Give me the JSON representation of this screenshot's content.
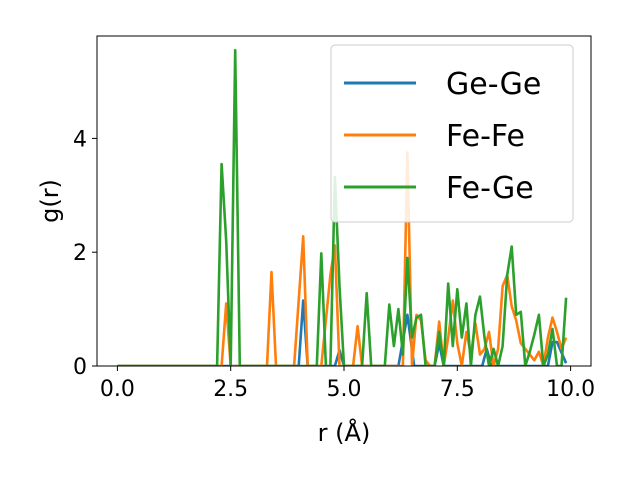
{
  "chart_data": {
    "type": "line",
    "xlabel": "r (Å)",
    "ylabel": "g(r)",
    "xlim": [
      -0.45,
      10.45
    ],
    "ylim": [
      0,
      5.8
    ],
    "xticks": [
      0.0,
      2.5,
      5.0,
      7.5,
      10.0
    ],
    "xtick_labels": [
      "0.0",
      "2.5",
      "5.0",
      "7.5",
      "10.0"
    ],
    "yticks": [
      0,
      2,
      4
    ],
    "ytick_labels": [
      "0",
      "2",
      "4"
    ],
    "grid": false,
    "legend_position": "top-right",
    "series": [
      {
        "name": "Ge-Ge",
        "color": "#1f77b4",
        "x": [
          0.0,
          3.7,
          3.85,
          4.0,
          4.1,
          4.2,
          4.35,
          4.8,
          4.9,
          5.0,
          6.2,
          6.4,
          6.55,
          7.0,
          7.1,
          7.2,
          8.05,
          8.15,
          8.25,
          9.5,
          9.6,
          9.7,
          9.9
        ],
        "values": [
          0,
          0,
          0,
          0,
          1.15,
          0,
          0,
          0,
          0.28,
          0,
          0,
          0.9,
          0,
          0,
          0.4,
          0,
          0,
          0.3,
          0,
          0,
          0.42,
          0.42,
          0.05
        ]
      },
      {
        "name": "Fe-Fe",
        "color": "#ff7f0e",
        "x": [
          0.0,
          2.1,
          2.3,
          2.4,
          2.5,
          3.3,
          3.4,
          3.5,
          3.9,
          4.1,
          4.2,
          4.3,
          4.5,
          4.7,
          4.8,
          4.9,
          5.0,
          5.2,
          5.3,
          5.4,
          6.2,
          6.3,
          6.4,
          6.5,
          6.6,
          6.7,
          6.8,
          6.9,
          7.0,
          7.1,
          7.2,
          7.3,
          7.4,
          7.5,
          7.6,
          7.7,
          7.8,
          7.9,
          8.0,
          8.1,
          8.2,
          8.3,
          8.4,
          8.5,
          8.6,
          8.7,
          8.8,
          8.9,
          9.0,
          9.1,
          9.2,
          9.3,
          9.4,
          9.5,
          9.6,
          9.7,
          9.8,
          9.9
        ],
        "values": [
          0,
          0,
          0,
          1.1,
          0,
          0,
          1.65,
          0,
          0,
          2.28,
          0,
          0,
          0,
          1.6,
          2.12,
          0,
          0,
          0,
          0.7,
          0,
          0,
          0,
          3.75,
          0,
          0.9,
          0.8,
          0.1,
          0,
          0,
          0.78,
          0,
          0.5,
          1.15,
          0.4,
          0,
          0.6,
          0.2,
          0.75,
          0.2,
          0.3,
          0.6,
          0,
          0.3,
          1.4,
          1.6,
          1.05,
          0.8,
          0.4,
          0.3,
          0.2,
          0.1,
          0.25,
          0,
          0.5,
          0.85,
          0.6,
          0.3,
          0.5
        ]
      },
      {
        "name": "Fe-Ge",
        "color": "#2ca02c",
        "x": [
          0.0,
          2.2,
          2.3,
          2.4,
          2.5,
          2.6,
          2.7,
          4.3,
          4.4,
          4.5,
          4.6,
          4.7,
          4.8,
          4.9,
          5.0,
          5.4,
          5.5,
          5.6,
          5.9,
          6.0,
          6.1,
          6.2,
          6.3,
          6.4,
          6.5,
          6.6,
          6.7,
          6.8,
          6.9,
          7.0,
          7.1,
          7.2,
          7.3,
          7.4,
          7.5,
          7.6,
          7.7,
          7.8,
          7.9,
          8.0,
          8.1,
          8.2,
          8.3,
          8.4,
          8.5,
          8.6,
          8.7,
          8.8,
          8.9,
          9.0,
          9.1,
          9.2,
          9.3,
          9.4,
          9.5,
          9.6,
          9.7,
          9.8,
          9.9
        ],
        "values": [
          0,
          0,
          3.55,
          2.2,
          0,
          5.55,
          0,
          0,
          0,
          1.98,
          0,
          0,
          3.32,
          1.4,
          0,
          0,
          1.28,
          0,
          0,
          1.08,
          0.35,
          1.0,
          0.2,
          1.9,
          0.5,
          0.85,
          0.9,
          0,
          0,
          0,
          0.6,
          0,
          1.45,
          0.35,
          1.35,
          0.5,
          1.1,
          0,
          0.9,
          1.22,
          0.5,
          0,
          0.3,
          0,
          0.35,
          1.6,
          2.1,
          0.9,
          0.95,
          0,
          0.25,
          0.55,
          0.9,
          0,
          0.2,
          0.65,
          0,
          0,
          1.2
        ]
      }
    ]
  }
}
